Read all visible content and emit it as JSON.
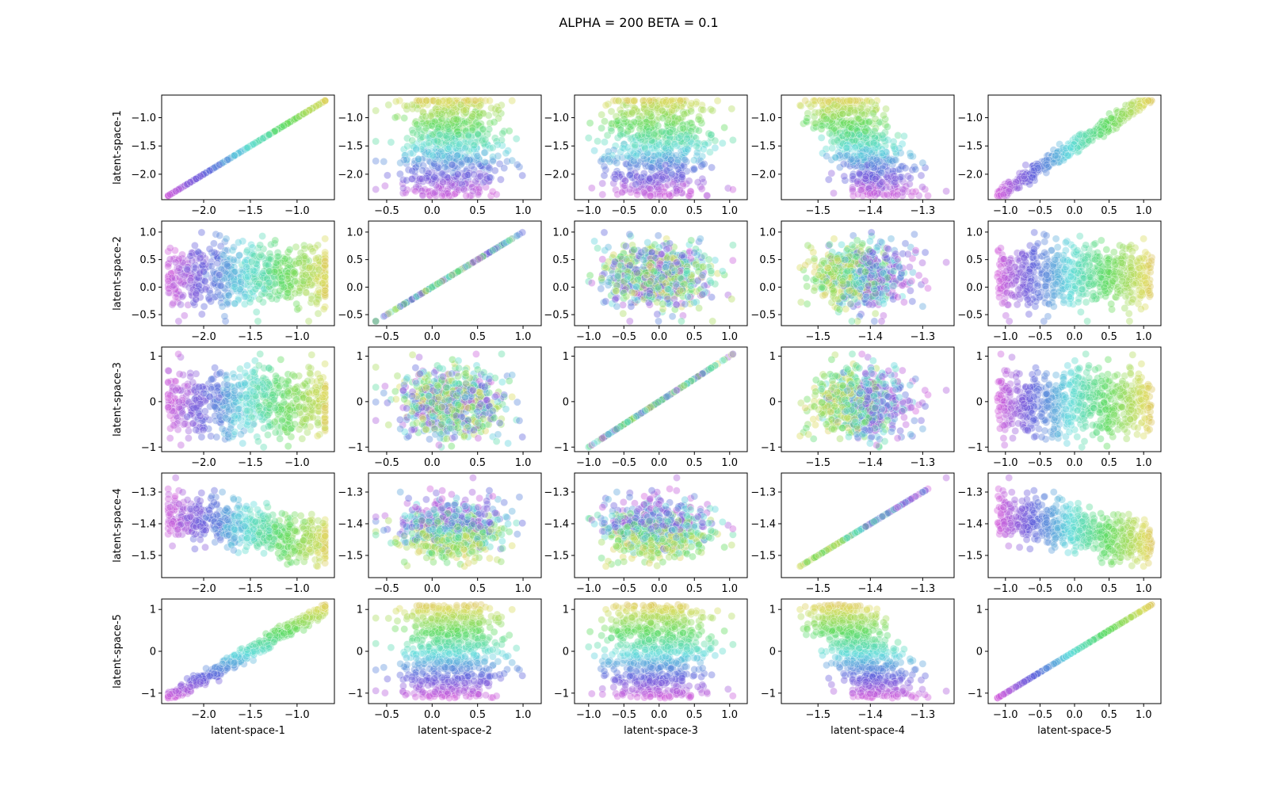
{
  "title": "ALPHA = 200  BETA = 0.1",
  "chart_data": {
    "type": "scatter",
    "layout": "pair-grid",
    "title": "ALPHA = 200  BETA = 0.1",
    "variables": [
      "latent-space-1",
      "latent-space-2",
      "latent-space-3",
      "latent-space-4",
      "latent-space-5"
    ],
    "color_by": "latent-space-5",
    "palette": "hls",
    "point_alpha": 0.4,
    "axes": [
      {
        "name": "latent-space-1",
        "range": [
          -2.45,
          -0.6
        ],
        "ticks": [
          -2.0,
          -1.5,
          -1.0
        ],
        "tick_labels": [
          "−2.0",
          "−1.5",
          "−1.0"
        ]
      },
      {
        "name": "latent-space-2",
        "range": [
          -0.7,
          1.2
        ],
        "ticks": [
          -0.5,
          0.0,
          0.5,
          1.0
        ],
        "tick_labels": [
          "−0.5",
          "0.0",
          "0.5",
          "1.0"
        ]
      },
      {
        "name": "latent-space-3",
        "range": [
          -1.2,
          1.25
        ],
        "ticks": [
          -1.0,
          -0.5,
          0.0,
          0.5,
          1.0
        ],
        "tick_labels": [
          "−1.0",
          "−0.5",
          "0.0",
          "0.5",
          "1.0"
        ],
        "row_ticks": [
          -1,
          0,
          1
        ],
        "row_tick_labels": [
          "−1",
          "0",
          "1"
        ]
      },
      {
        "name": "latent-space-4",
        "range": [
          -1.57,
          -1.24
        ],
        "ticks": [
          -1.5,
          -1.4,
          -1.3
        ],
        "tick_labels": [
          "−1.5",
          "−1.4",
          "−1.3"
        ]
      },
      {
        "name": "latent-space-5",
        "range": [
          -1.25,
          1.25
        ],
        "ticks": [
          -1.0,
          -0.5,
          0.0,
          0.5,
          1.0
        ],
        "tick_labels": [
          "−1.0",
          "−0.5",
          "0.0",
          "0.5",
          "1.0"
        ],
        "row_ticks": [
          -1,
          0,
          1
        ],
        "row_tick_labels": [
          "−1",
          "0",
          "1"
        ]
      }
    ],
    "row_tick_sets": [
      {
        "ticks": [
          -2.0,
          -1.5,
          -1.0
        ],
        "labels": [
          "−2.0",
          "−1.5",
          "−1.0"
        ]
      },
      {
        "ticks": [
          -0.5,
          0.0,
          0.5,
          1.0
        ],
        "labels": [
          "−0.5",
          "0.0",
          "0.5",
          "1.0"
        ]
      },
      {
        "ticks": [
          -1,
          0,
          1
        ],
        "labels": [
          "−1",
          "0",
          "1"
        ]
      },
      {
        "ticks": [
          -1.5,
          -1.4,
          -1.3
        ],
        "labels": [
          "−1.5",
          "−1.4",
          "−1.3"
        ]
      },
      {
        "ticks": [
          -1,
          0,
          1
        ],
        "labels": [
          "−1",
          "0",
          "1"
        ]
      }
    ],
    "row_ranges": [
      [
        -2.45,
        -0.6
      ],
      [
        -0.7,
        1.2
      ],
      [
        -1.1,
        1.2
      ],
      [
        -1.57,
        -1.24
      ],
      [
        -1.25,
        1.25
      ]
    ],
    "relations": {
      "latent-space-1 vs latent-space-5": "strong positive linear, slope ~1.2",
      "latent-space-4 vs latent-space-1": "moderate negative",
      "latent-space-2 vs latent-space-3": "uncorrelated",
      "diagonal": "identity line"
    },
    "samples": {
      "count": 700,
      "latent-space-1": {
        "center": -1.5,
        "spread": 0.8
      },
      "latent-space-2": {
        "center": 0.2,
        "spread": 0.4
      },
      "latent-space-3": {
        "center": 0.0,
        "spread": 0.45
      },
      "latent-space-4": {
        "center": -1.42,
        "spread": 0.05
      },
      "latent-space-5": {
        "center": 0.0,
        "spread": 1.0
      }
    },
    "outliers": [
      {
        "latent-space-1": -2.3,
        "latent-space-2": 0.45,
        "latent-space-3": 0.25,
        "latent-space-4": -1.255,
        "latent-space-5": -0.95
      },
      {
        "latent-space-1": -1.8,
        "latent-space-2": -0.35,
        "latent-space-3": -0.6,
        "latent-space-4": -1.3,
        "latent-space-5": -0.3
      }
    ]
  }
}
